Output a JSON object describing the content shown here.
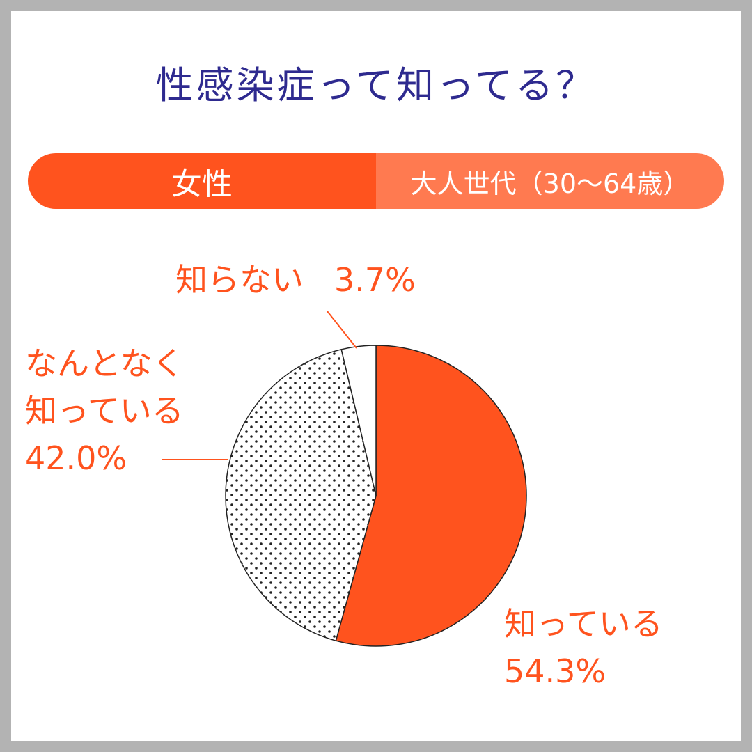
{
  "title": "性感染症って知ってる？",
  "segment": {
    "left_label": "女性",
    "right_label": "大人世代（30～64歳）"
  },
  "colors": {
    "accent": "#ff531e",
    "accent_light": "#ff7a50",
    "title": "#2e2a8f",
    "dots": "#222222"
  },
  "chart_data": {
    "type": "pie",
    "slices": [
      {
        "label": "知っている",
        "value": 54.3,
        "value_label": "54.3%",
        "fill": "solid"
      },
      {
        "label": "なんとなく知っている",
        "value": 42.0,
        "value_label": "42.0%",
        "fill": "dotted"
      },
      {
        "label": "知らない",
        "value": 3.7,
        "value_label": "3.7%",
        "fill": "white"
      }
    ],
    "label_lines": {
      "knows": [
        "知っている",
        "54.3%"
      ],
      "vaguely": [
        "なんとなく",
        "知っている",
        "42.0%"
      ],
      "unknown": [
        "知らない",
        "3.7%"
      ]
    }
  }
}
